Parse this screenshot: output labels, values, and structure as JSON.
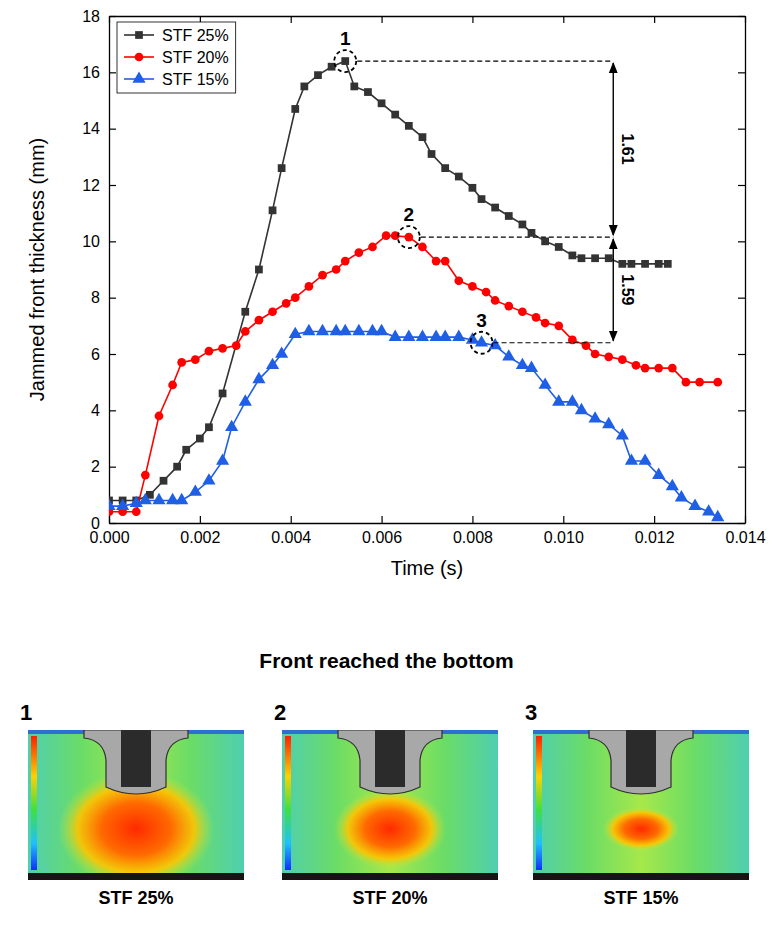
{
  "chart_data": {
    "type": "line",
    "x_label": "Time (s)",
    "y_label": "Jammed front thickness (mm)",
    "xlim": [
      0,
      0.014
    ],
    "xticks": [
      {
        "value": 0,
        "label": "0.000"
      },
      {
        "value": 0.002,
        "label": "0.002"
      },
      {
        "value": 0.004,
        "label": "0.004"
      },
      {
        "value": 0.006,
        "label": "0.006"
      },
      {
        "value": 0.008,
        "label": "0.008"
      },
      {
        "value": 0.01,
        "label": "0.010"
      },
      {
        "value": 0.012,
        "label": "0.012"
      },
      {
        "value": 0.014,
        "label": "0.014"
      }
    ],
    "ylim": [
      0,
      18
    ],
    "yticks": [
      0,
      2,
      4,
      6,
      8,
      10,
      12,
      14,
      16,
      18
    ],
    "grid": false,
    "legend": "upper left",
    "series": [
      {
        "name": "STF 25%",
        "color": "#333333",
        "marker": "square",
        "line_style": "solid",
        "x": [
          0,
          0.0003,
          0.0006,
          0.0009,
          0.0012,
          0.0015,
          0.0017,
          0.002,
          0.0022,
          0.0025,
          0.003,
          0.0033,
          0.0036,
          0.0038,
          0.0041,
          0.0043,
          0.0046,
          0.0049,
          0.0052,
          0.0054,
          0.0057,
          0.006,
          0.0063,
          0.0066,
          0.0069,
          0.0071,
          0.0074,
          0.0077,
          0.008,
          0.0082,
          0.0085,
          0.0088,
          0.0091,
          0.0093,
          0.0096,
          0.0099,
          0.0102,
          0.0104,
          0.0107,
          0.011,
          0.0113,
          0.0115,
          0.0118,
          0.0121,
          0.0123
        ],
        "values": [
          0.8,
          0.8,
          0.8,
          1.0,
          1.5,
          2.0,
          2.6,
          3.0,
          3.4,
          4.6,
          7.5,
          9.0,
          11.1,
          12.6,
          14.7,
          15.5,
          15.9,
          16.2,
          16.4,
          15.5,
          15.3,
          14.9,
          14.5,
          14.1,
          13.7,
          13.1,
          12.6,
          12.3,
          11.9,
          11.5,
          11.2,
          10.9,
          10.6,
          10.3,
          10.0,
          9.8,
          9.5,
          9.4,
          9.4,
          9.4,
          9.2,
          9.2,
          9.2,
          9.2,
          9.2
        ]
      },
      {
        "name": "STF 20%",
        "color": "#ff0000",
        "marker": "circle",
        "line_style": "solid",
        "x": [
          0,
          0.0003,
          0.0006,
          0.0008,
          0.0011,
          0.0014,
          0.0016,
          0.0019,
          0.0022,
          0.0025,
          0.0028,
          0.003,
          0.0033,
          0.0036,
          0.0039,
          0.0041,
          0.0044,
          0.0047,
          0.005,
          0.0052,
          0.0055,
          0.0058,
          0.0061,
          0.0063,
          0.0066,
          0.0069,
          0.0072,
          0.0074,
          0.0077,
          0.008,
          0.0083,
          0.0085,
          0.0088,
          0.0091,
          0.0094,
          0.0096,
          0.0099,
          0.0102,
          0.0105,
          0.0107,
          0.011,
          0.0113,
          0.0116,
          0.0118,
          0.0121,
          0.0124,
          0.0127,
          0.013,
          0.0134
        ],
        "values": [
          0.4,
          0.4,
          0.4,
          1.7,
          3.8,
          4.9,
          5.7,
          5.8,
          6.1,
          6.2,
          6.3,
          6.8,
          7.2,
          7.5,
          7.8,
          8.0,
          8.4,
          8.8,
          9.0,
          9.3,
          9.6,
          9.8,
          10.2,
          10.2,
          10.15,
          9.8,
          9.3,
          9.3,
          8.6,
          8.4,
          8.2,
          7.9,
          7.7,
          7.5,
          7.3,
          7.1,
          7.0,
          6.5,
          6.3,
          6.0,
          5.9,
          5.8,
          5.6,
          5.5,
          5.5,
          5.5,
          5.0,
          5.0,
          5.0
        ]
      },
      {
        "name": "STF 15%",
        "color": "#1f5fe6",
        "marker": "triangle",
        "line_style": "solid",
        "x": [
          0,
          0.0003,
          0.0006,
          0.0008,
          0.0011,
          0.0014,
          0.0016,
          0.0019,
          0.0022,
          0.0025,
          0.0027,
          0.003,
          0.0033,
          0.0036,
          0.0038,
          0.0041,
          0.0044,
          0.0047,
          0.005,
          0.0052,
          0.0055,
          0.0058,
          0.006,
          0.0063,
          0.0066,
          0.0069,
          0.0072,
          0.0074,
          0.0077,
          0.008,
          0.0082,
          0.0085,
          0.0088,
          0.0091,
          0.0093,
          0.0096,
          0.0099,
          0.0102,
          0.0104,
          0.0107,
          0.011,
          0.0113,
          0.0115,
          0.0118,
          0.0121,
          0.0124,
          0.0126,
          0.0129,
          0.0132,
          0.0134
        ],
        "values": [
          0.6,
          0.6,
          0.7,
          0.8,
          0.8,
          0.8,
          0.8,
          1.1,
          1.5,
          2.2,
          3.4,
          4.3,
          5.1,
          5.6,
          6.0,
          6.7,
          6.8,
          6.8,
          6.8,
          6.8,
          6.8,
          6.8,
          6.8,
          6.6,
          6.6,
          6.6,
          6.6,
          6.6,
          6.6,
          6.5,
          6.4,
          6.3,
          5.9,
          5.6,
          5.5,
          4.9,
          4.3,
          4.3,
          4.0,
          3.7,
          3.5,
          3.1,
          2.2,
          2.2,
          1.7,
          1.3,
          0.9,
          0.6,
          0.4,
          0.2
        ]
      }
    ],
    "annotations": [
      {
        "text": "1",
        "x": 0.0052,
        "y": 16.4
      },
      {
        "text": "2",
        "x": 0.0066,
        "y": 10.15
      },
      {
        "text": "3",
        "x": 0.0082,
        "y": 6.4
      }
    ],
    "ratios": [
      {
        "value": 1.61,
        "x": 0.0111,
        "y_from": 10.15,
        "y_to": 16.4
      },
      {
        "value": 1.59,
        "x": 0.0111,
        "y_from": 6.4,
        "y_to": 10.15
      }
    ]
  },
  "images": {
    "heading": "Front reached the bottom",
    "panels": [
      {
        "label": "1",
        "caption": "STF 25%"
      },
      {
        "label": "2",
        "caption": "STF 20%"
      },
      {
        "label": "3",
        "caption": "STF 15%"
      }
    ]
  }
}
